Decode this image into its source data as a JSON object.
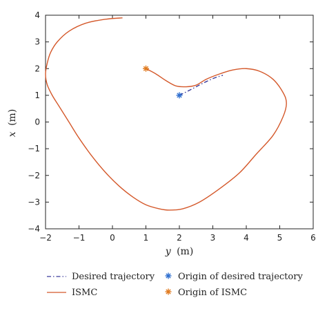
{
  "chart_data": {
    "type": "line",
    "title": "",
    "xlabel": {
      "var": "y",
      "unit": "(m)"
    },
    "ylabel": {
      "var": "x",
      "unit": "(m)"
    },
    "xlim": [
      -2,
      6
    ],
    "ylim": [
      -4,
      4
    ],
    "xticks": [
      -2,
      -1,
      0,
      1,
      2,
      3,
      4,
      5,
      6
    ],
    "yticks": [
      -4,
      -3,
      -2,
      -1,
      0,
      1,
      2,
      3,
      4
    ],
    "grid": false,
    "legend_placement": "bottom",
    "series": [
      {
        "name": "Desired trajectory",
        "style": "dash-dot",
        "color": "#3b3b9c",
        "points": [
          [
            2.0,
            1.0
          ],
          [
            2.35,
            1.22
          ],
          [
            2.7,
            1.45
          ],
          [
            3.05,
            1.65
          ],
          [
            3.3,
            1.75
          ]
        ]
      },
      {
        "name": "ISMC",
        "style": "solid",
        "color": "#d4582a",
        "points": [
          [
            0.3,
            3.9
          ],
          [
            -0.2,
            3.85
          ],
          [
            -0.8,
            3.7
          ],
          [
            -1.3,
            3.4
          ],
          [
            -1.65,
            3.0
          ],
          [
            -1.85,
            2.6
          ],
          [
            -1.95,
            2.2
          ],
          [
            -2.0,
            1.8
          ],
          [
            -1.95,
            1.4
          ],
          [
            -1.8,
            1.0
          ],
          [
            -1.6,
            0.6
          ],
          [
            -1.3,
            0.0
          ],
          [
            -1.0,
            -0.6
          ],
          [
            -0.6,
            -1.3
          ],
          [
            -0.2,
            -1.9
          ],
          [
            0.2,
            -2.4
          ],
          [
            0.6,
            -2.8
          ],
          [
            1.0,
            -3.1
          ],
          [
            1.4,
            -3.25
          ],
          [
            1.7,
            -3.3
          ],
          [
            2.1,
            -3.25
          ],
          [
            2.6,
            -3.0
          ],
          [
            3.2,
            -2.5
          ],
          [
            3.8,
            -1.9
          ],
          [
            4.3,
            -1.2
          ],
          [
            4.8,
            -0.5
          ],
          [
            5.1,
            0.2
          ],
          [
            5.2,
            0.7
          ],
          [
            5.1,
            1.1
          ],
          [
            4.8,
            1.6
          ],
          [
            4.4,
            1.9
          ],
          [
            4.0,
            2.0
          ],
          [
            3.6,
            1.95
          ],
          [
            3.2,
            1.8
          ],
          [
            2.8,
            1.6
          ],
          [
            2.5,
            1.38
          ],
          [
            2.2,
            1.32
          ],
          [
            1.9,
            1.35
          ],
          [
            1.6,
            1.55
          ],
          [
            1.3,
            1.8
          ],
          [
            1.0,
            2.0
          ]
        ]
      }
    ],
    "markers": [
      {
        "name": "Origin of desired trajectory",
        "x": 2,
        "y": 1,
        "color": "#2f6fcf",
        "symbol": "asterisk"
      },
      {
        "name": "Origin of ISMC",
        "x": 1,
        "y": 2,
        "color": "#e07a1e",
        "symbol": "asterisk"
      }
    ]
  }
}
